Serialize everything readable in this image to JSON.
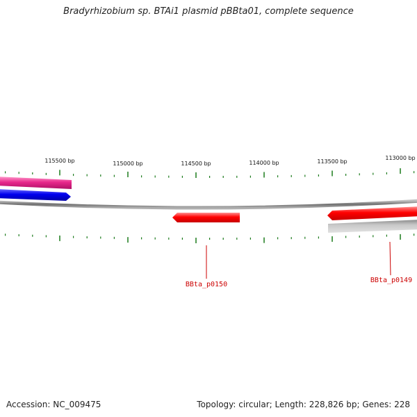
{
  "title": "Bradyrhizobium sp. BTAi1 plasmid pBBta01, complete sequence",
  "accession": "Accession: NC_009475",
  "summary": "Topology: circular; Length: 228,826 bp; Genes: 228",
  "colors": {
    "backbone": "#808080",
    "tick": "#1a7a1a",
    "gene_red": "#ff0000",
    "gene_pink": "#e8288c",
    "gene_blue": "#0000ee",
    "gene_gray": "#b8b8b8",
    "label": "#cc0000"
  },
  "ticks": [
    {
      "label": "115500 bp"
    },
    {
      "label": "115000 bp"
    },
    {
      "label": "114500 bp"
    },
    {
      "label": "114000 bp"
    },
    {
      "label": "113500 bp"
    },
    {
      "label": "113000 bp"
    }
  ],
  "genes": [
    {
      "name": "BBta_p0150"
    },
    {
      "name": "BBta_p0149"
    }
  ]
}
